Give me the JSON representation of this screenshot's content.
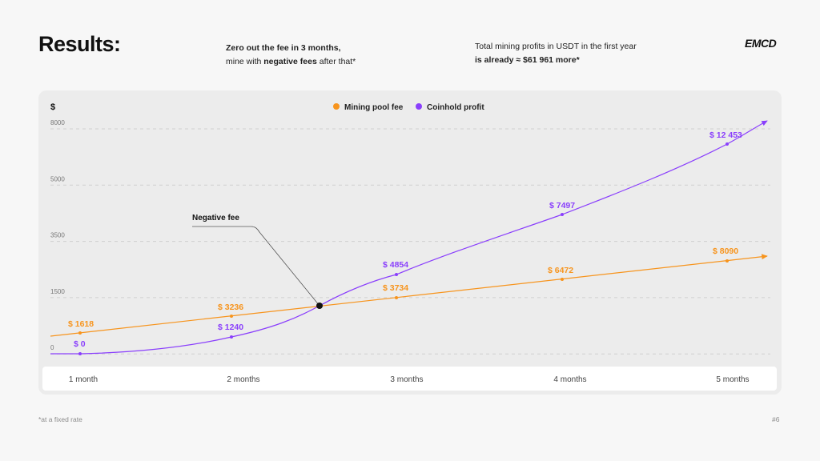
{
  "header": {
    "title": "Results:",
    "lead_line1": "Zero out the fee in 3 months,",
    "lead_line2_pre": "mine with ",
    "lead_line2_bold": "negative fees",
    "lead_line2_post": " after that*",
    "summary_line1": "Total mining profits in USDT in the first year",
    "summary_line2_pre": "is already ≈ ",
    "summary_line2_bold": "$61 961 more*",
    "logo": "EMCD"
  },
  "footer": {
    "footnote": "*at a fixed rate",
    "page": "#6"
  },
  "colors": {
    "fee": "#f7941d",
    "profit": "#8a3ffc",
    "background": "#f7f7f7",
    "panel": "#ececec"
  },
  "chart_data": {
    "type": "line",
    "y_unit": "$",
    "y_ticks": [
      "8000",
      "5000",
      "3500",
      "1500",
      "0"
    ],
    "categories": [
      "1 month",
      "2 months",
      "3 months",
      "4 months",
      "5 months"
    ],
    "series": [
      {
        "name": "Mining pool fee",
        "color": "#f7941d",
        "values": [
          1618,
          3236,
          3734,
          6472,
          8090
        ],
        "labels": [
          "$ 1618",
          "$ 3236",
          "$ 3734",
          "$ 6472",
          "$ 8090"
        ]
      },
      {
        "name": "Coinhold profit",
        "color": "#8a3ffc",
        "values": [
          0,
          1240,
          4854,
          7497,
          12453
        ],
        "labels": [
          "$ 0",
          "$ 1240",
          "$ 4854",
          "$ 7497",
          "$ 12 453"
        ]
      }
    ],
    "annotation": {
      "text": "Negative fee"
    },
    "legend_position": "top-center",
    "grid": true
  }
}
